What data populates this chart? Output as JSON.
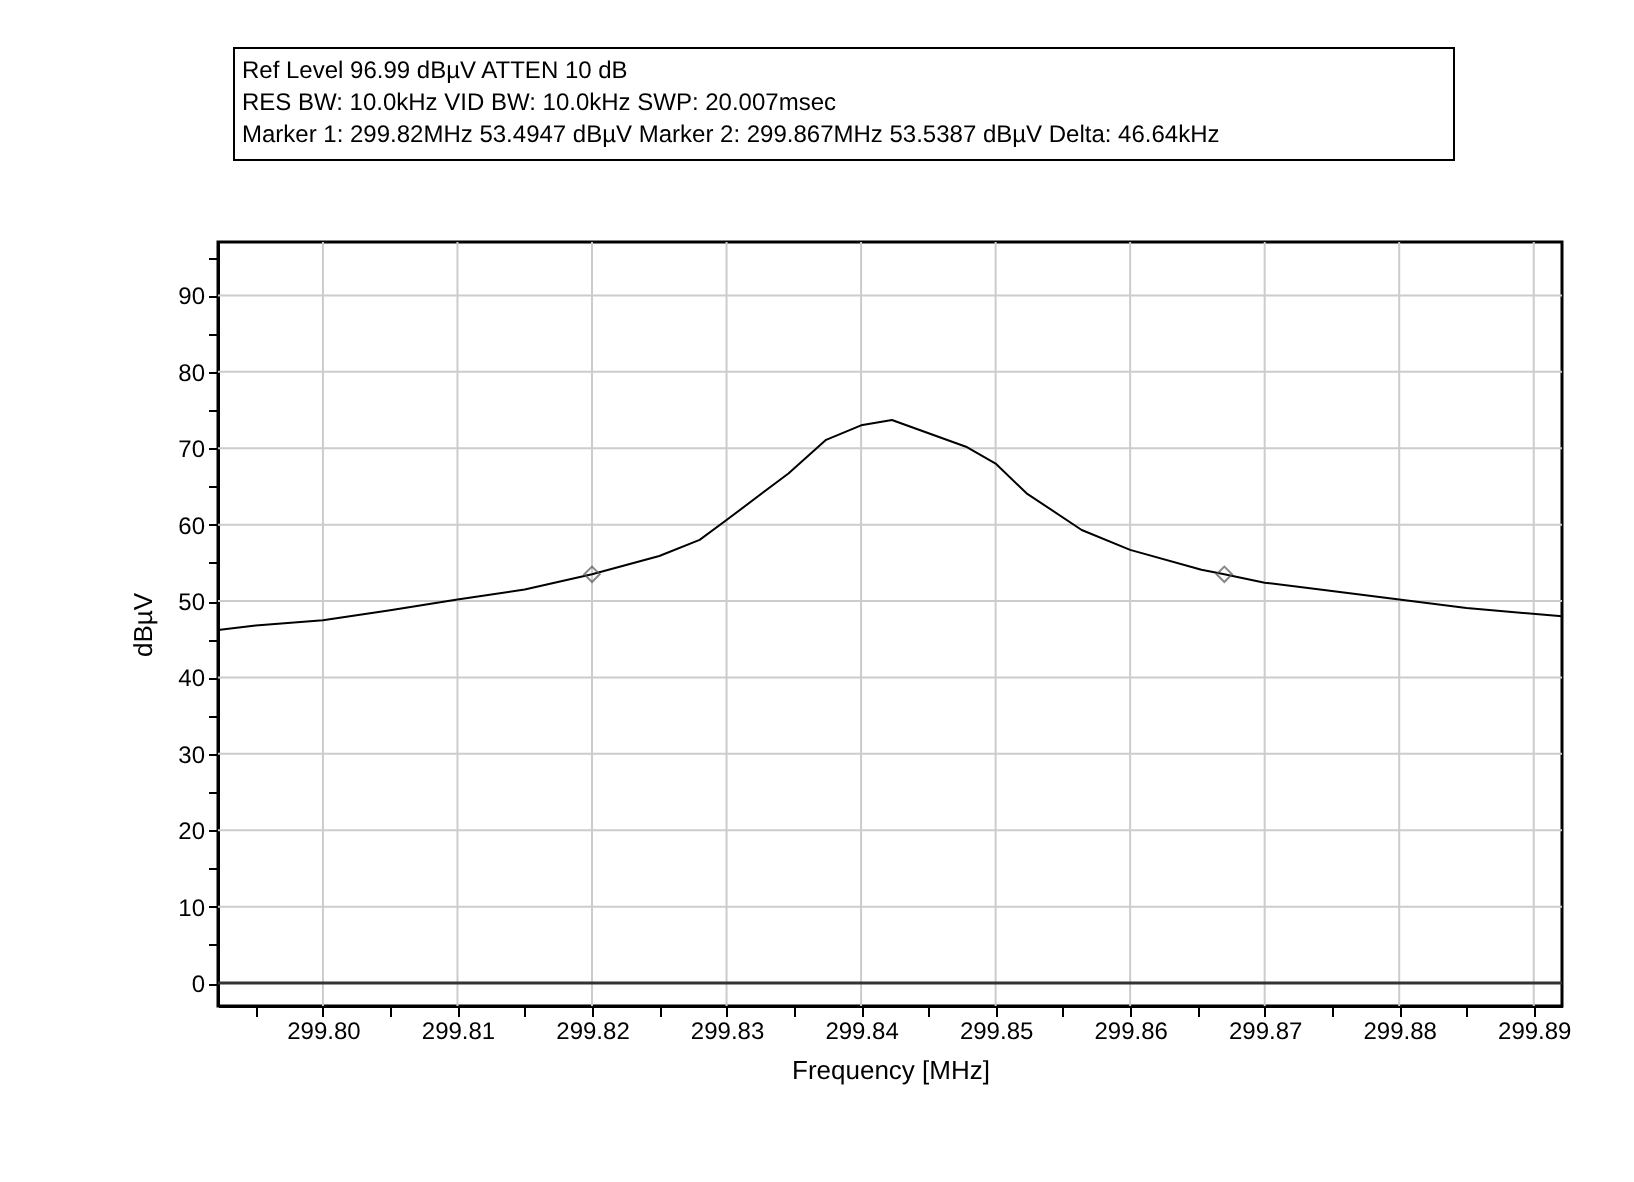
{
  "chart_data": {
    "type": "line",
    "xlabel": "Frequency [MHz]",
    "ylabel": "dBµV",
    "annotations": [
      "Ref Level 96.99 dBµV    ATTEN 10 dB",
      "RES BW: 10.0kHz  VID BW: 10.0kHz  SWP: 20.007msec",
      "Marker 1: 299.82MHz  53.4947 dBµV    Marker 2: 299.867MHz  53.5387 dBµV Delta: 46.64kHz"
    ],
    "xlim": [
      299.7922,
      299.8921
    ],
    "ylim": [
      -3,
      96.99
    ],
    "xticks": [
      {
        "value": 299.795,
        "label": null
      },
      {
        "value": 299.8,
        "label": "299.80"
      },
      {
        "value": 299.805,
        "label": null
      },
      {
        "value": 299.81,
        "label": "299.81"
      },
      {
        "value": 299.815,
        "label": null
      },
      {
        "value": 299.82,
        "label": "299.82"
      },
      {
        "value": 299.825,
        "label": null
      },
      {
        "value": 299.83,
        "label": "299.83"
      },
      {
        "value": 299.835,
        "label": null
      },
      {
        "value": 299.84,
        "label": "299.84"
      },
      {
        "value": 299.845,
        "label": null
      },
      {
        "value": 299.85,
        "label": "299.85"
      },
      {
        "value": 299.855,
        "label": null
      },
      {
        "value": 299.86,
        "label": "299.86"
      },
      {
        "value": 299.865,
        "label": null
      },
      {
        "value": 299.87,
        "label": "299.87"
      },
      {
        "value": 299.875,
        "label": null
      },
      {
        "value": 299.88,
        "label": "299.88"
      },
      {
        "value": 299.885,
        "label": null
      },
      {
        "value": 299.89,
        "label": "299.89"
      }
    ],
    "yticks": [
      0,
      {
        "value": 5,
        "label": null
      },
      10,
      {
        "value": 15,
        "label": null
      },
      20,
      {
        "value": 25,
        "label": null
      },
      30,
      {
        "value": 35,
        "label": null
      },
      40,
      {
        "value": 45,
        "label": null
      },
      50,
      {
        "value": 55,
        "label": null
      },
      60,
      {
        "value": 65,
        "label": null
      },
      70,
      {
        "value": 75,
        "label": null
      },
      80,
      {
        "value": 85,
        "label": null
      },
      90,
      {
        "value": 95,
        "label": null
      }
    ],
    "grid": true,
    "ref_lines": [
      {
        "axis": "y",
        "value": 0,
        "color": "#333333"
      }
    ],
    "series": [
      {
        "color": "#000000",
        "marker": "none",
        "line_style": "solid",
        "x": [
          299.7922,
          299.795,
          299.8,
          299.805,
          299.81,
          299.815,
          299.82,
          299.825,
          299.828,
          299.83,
          299.8346,
          299.8374,
          299.84,
          299.8423,
          299.8426,
          299.8478,
          299.85,
          299.8523,
          299.8564,
          299.86,
          299.8653,
          299.867,
          299.87,
          299.875,
          299.88,
          299.885,
          299.8921
        ],
        "values": [
          46.2,
          46.8,
          47.5,
          48.8,
          50.2,
          51.5,
          53.5,
          55.9,
          58.0,
          60.6,
          66.7,
          71.1,
          73.0,
          73.7,
          73.5,
          70.2,
          68.0,
          64.1,
          59.3,
          56.7,
          54.1,
          53.5,
          52.4,
          51.3,
          50.2,
          49.1,
          48.0
        ]
      },
      {
        "type": "scatter",
        "color": "#555555",
        "marker": "diamond",
        "x": [
          299.82,
          299.867
        ],
        "values": [
          53.5,
          53.5
        ]
      }
    ]
  }
}
